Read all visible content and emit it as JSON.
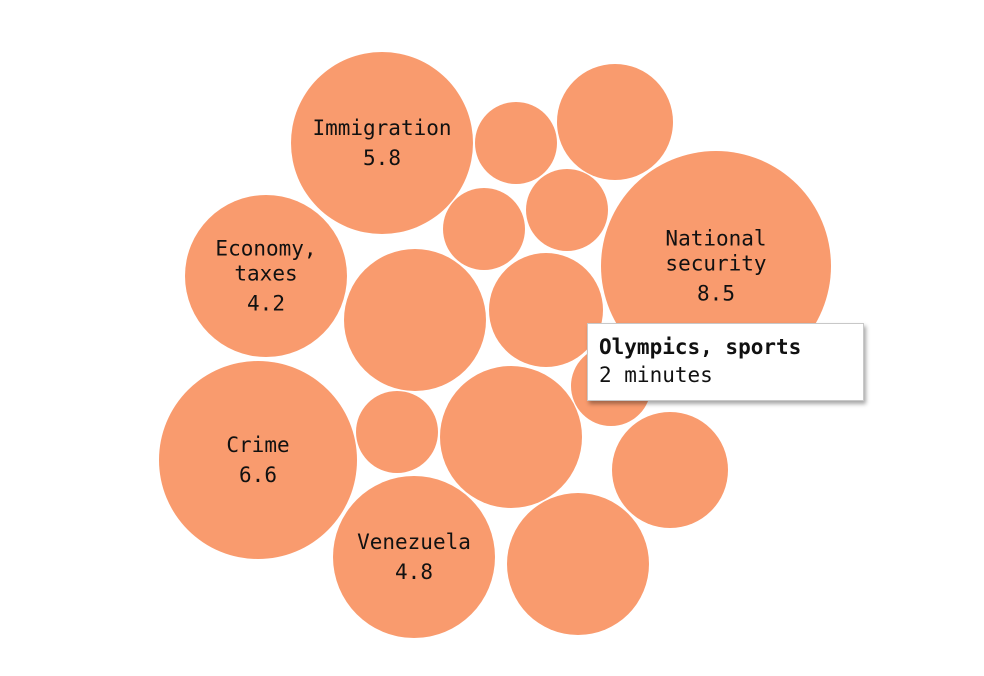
{
  "chart_data": {
    "type": "bubble",
    "color": "#f99b6e",
    "unit": "minutes",
    "items": [
      {
        "id": "immigration",
        "lines": [
          "Immigration"
        ],
        "value_label": "5.8",
        "value": 5.8
      },
      {
        "id": "national-security",
        "lines": [
          "National",
          "security"
        ],
        "value_label": "8.5",
        "value": 8.5
      },
      {
        "id": "economy-taxes",
        "lines": [
          "Economy,",
          "taxes"
        ],
        "value_label": "4.2",
        "value": 4.2
      },
      {
        "id": "crime",
        "lines": [
          "Crime"
        ],
        "value_label": "6.6",
        "value": 6.6
      },
      {
        "id": "venezuela",
        "lines": [
          "Venezuela"
        ],
        "value_label": "4.8",
        "value": 4.8
      },
      {
        "id": "olympics-sports",
        "lines": [],
        "value_label": "",
        "value": 2
      },
      {
        "id": "unlabeled-1",
        "lines": [],
        "value_label": "",
        "value": null
      },
      {
        "id": "unlabeled-2",
        "lines": [],
        "value_label": "",
        "value": null
      },
      {
        "id": "unlabeled-3",
        "lines": [],
        "value_label": "",
        "value": null
      },
      {
        "id": "unlabeled-4",
        "lines": [],
        "value_label": "",
        "value": null
      },
      {
        "id": "unlabeled-5",
        "lines": [],
        "value_label": "",
        "value": null
      },
      {
        "id": "unlabeled-6",
        "lines": [],
        "value_label": "",
        "value": null
      },
      {
        "id": "unlabeled-7",
        "lines": [],
        "value_label": "",
        "value": null
      },
      {
        "id": "unlabeled-8",
        "lines": [],
        "value_label": "",
        "value": null
      },
      {
        "id": "unlabeled-9",
        "lines": [],
        "value_label": "",
        "value": null
      },
      {
        "id": "unlabeled-10",
        "lines": [],
        "value_label": "",
        "value": null
      },
      {
        "id": "unlabeled-11",
        "lines": [],
        "value_label": "",
        "value": null
      }
    ]
  },
  "tooltip": {
    "title": "Olympics, sports",
    "value": "2 minutes"
  }
}
